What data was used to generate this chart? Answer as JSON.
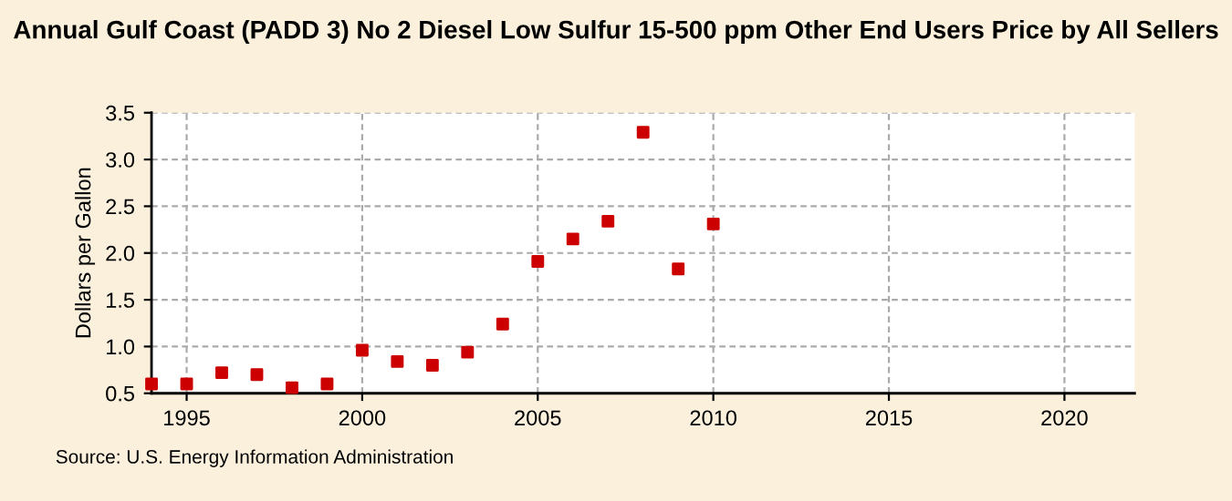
{
  "chart_data": {
    "type": "scatter",
    "title": "Annual Gulf Coast (PADD 3) No 2 Diesel Low Sulfur 15-500 ppm Other End Users Price by All Sellers",
    "ylabel": "Dollars per Gallon",
    "x": [
      1994,
      1995,
      1996,
      1997,
      1998,
      1999,
      2000,
      2001,
      2002,
      2003,
      2004,
      2005,
      2006,
      2007,
      2008,
      2009,
      2010
    ],
    "series": [
      {
        "color": "#cc0000",
        "values": [
          0.6,
          0.6,
          0.72,
          0.7,
          0.56,
          0.6,
          0.96,
          0.84,
          0.8,
          0.94,
          1.24,
          1.91,
          2.15,
          2.34,
          3.29,
          1.83,
          2.31
        ]
      }
    ],
    "xlim": [
      1994,
      2022
    ],
    "xticks": [
      1995,
      2000,
      2005,
      2010,
      2015,
      2020
    ],
    "ylim": [
      0.5,
      3.5
    ],
    "yticks": [
      {
        "value": 0.5,
        "label": "0.5"
      },
      {
        "value": 1.0,
        "label": "1.0"
      },
      {
        "value": 1.5,
        "label": "1.5"
      },
      {
        "value": 2.0,
        "label": "2.0"
      },
      {
        "value": 2.5,
        "label": "2.5"
      },
      {
        "value": 3.0,
        "label": "3.0"
      },
      {
        "value": 3.5,
        "label": "3.5"
      }
    ],
    "grid": true,
    "marker": "square",
    "annotations": [
      "Source: U.S. Energy Information Administration"
    ]
  }
}
